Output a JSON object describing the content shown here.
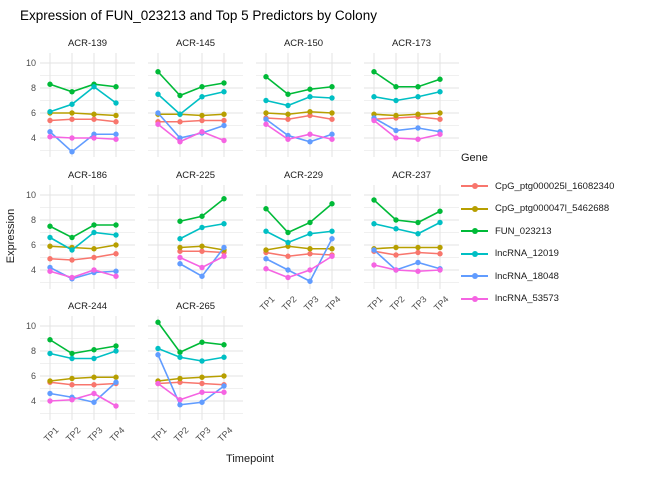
{
  "title": "Expression of FUN_023213 and Top 5 Predictors by Colony",
  "axes": {
    "x_title": "Timepoint",
    "y_title": "Expression",
    "x_ticks": [
      "TP1",
      "TP2",
      "TP3",
      "TP4"
    ],
    "y_ticks": [
      "10",
      "8",
      "6",
      "4"
    ]
  },
  "legend": {
    "title": "Gene",
    "items": [
      {
        "label": "CpG_ptg000025l_16082340",
        "color": "#F8766D"
      },
      {
        "label": "CpG_ptg000047l_5462688",
        "color": "#B79F00"
      },
      {
        "label": "FUN_023213",
        "color": "#00BA38"
      },
      {
        "label": "lncRNA_12019",
        "color": "#00BFC4"
      },
      {
        "label": "lncRNA_18048",
        "color": "#619CFF"
      },
      {
        "label": "lncRNA_53573",
        "color": "#F564E2"
      }
    ]
  },
  "chart_data": {
    "type": "line",
    "title": "Expression of FUN_023213 and Top 5 Predictors by Colony",
    "xlabel": "Timepoint",
    "ylabel": "Expression",
    "x": [
      "TP1",
      "TP2",
      "TP3",
      "TP4"
    ],
    "ylim": [
      2.5,
      10.8
    ],
    "y_major_ticks": [
      4,
      6,
      8,
      10
    ],
    "y_minor_ticks": [
      3,
      5,
      7,
      9
    ],
    "grid": true,
    "legend_position": "right",
    "series_names": [
      "CpG_ptg000025l_16082340",
      "CpG_ptg000047l_5462688",
      "FUN_023213",
      "lncRNA_12019",
      "lncRNA_18048",
      "lncRNA_53573"
    ],
    "facets": [
      {
        "name": "ACR-139",
        "series": [
          [
            5.4,
            5.5,
            5.5,
            5.3
          ],
          [
            6.0,
            6.0,
            5.9,
            5.8
          ],
          [
            8.3,
            7.7,
            8.3,
            8.1
          ],
          [
            6.1,
            6.7,
            8.1,
            6.8
          ],
          [
            4.5,
            2.9,
            4.3,
            4.3
          ],
          [
            4.1,
            4.0,
            4.0,
            3.9
          ]
        ]
      },
      {
        "name": "ACR-145",
        "series": [
          [
            5.3,
            5.3,
            5.4,
            5.4
          ],
          [
            5.9,
            5.9,
            5.8,
            5.9
          ],
          [
            9.3,
            7.4,
            8.1,
            8.4
          ],
          [
            7.5,
            5.9,
            7.3,
            7.7
          ],
          [
            6.0,
            4.0,
            4.4,
            5.0
          ],
          [
            5.1,
            3.7,
            4.5,
            3.8
          ]
        ]
      },
      {
        "name": "ACR-150",
        "series": [
          [
            5.6,
            5.5,
            5.8,
            5.5
          ],
          [
            6.0,
            5.9,
            6.1,
            6.0
          ],
          [
            8.9,
            7.5,
            7.9,
            8.1
          ],
          [
            7.0,
            6.6,
            7.3,
            7.2
          ],
          [
            5.5,
            4.2,
            3.7,
            4.3
          ],
          [
            5.1,
            3.9,
            4.3,
            3.9
          ]
        ]
      },
      {
        "name": "ACR-173",
        "series": [
          [
            5.5,
            5.6,
            5.7,
            5.5
          ],
          [
            5.9,
            5.8,
            5.9,
            6.0
          ],
          [
            9.3,
            8.1,
            8.1,
            8.7
          ],
          [
            7.3,
            7.0,
            7.3,
            7.7
          ],
          [
            5.6,
            4.6,
            4.8,
            4.5
          ],
          [
            5.4,
            4.0,
            3.9,
            4.3
          ]
        ]
      },
      {
        "name": "ACR-186",
        "series": [
          [
            4.9,
            4.8,
            5.0,
            5.3
          ],
          [
            5.9,
            5.8,
            5.7,
            6.0
          ],
          [
            7.5,
            6.6,
            7.6,
            7.6
          ],
          [
            6.6,
            5.6,
            7.0,
            6.8
          ],
          [
            4.2,
            3.3,
            3.8,
            3.9
          ],
          [
            3.9,
            3.4,
            4.0,
            3.5
          ]
        ]
      },
      {
        "name": "ACR-225",
        "series": [
          [
            null,
            5.5,
            5.5,
            5.4
          ],
          [
            null,
            5.8,
            5.9,
            5.6
          ],
          [
            null,
            7.9,
            8.3,
            9.7
          ],
          [
            null,
            6.5,
            7.4,
            7.7
          ],
          [
            null,
            4.5,
            3.5,
            5.8
          ],
          [
            null,
            5.0,
            4.2,
            5.1
          ]
        ]
      },
      {
        "name": "ACR-229",
        "series": [
          [
            5.4,
            5.1,
            5.3,
            5.2
          ],
          [
            5.6,
            5.9,
            5.7,
            5.7
          ],
          [
            8.9,
            7.0,
            7.8,
            9.3
          ],
          [
            7.1,
            6.2,
            6.9,
            7.1
          ],
          [
            4.9,
            4.0,
            3.1,
            6.5
          ],
          [
            4.1,
            3.4,
            4.0,
            5.1
          ]
        ]
      },
      {
        "name": "ACR-237",
        "series": [
          [
            5.5,
            5.2,
            5.4,
            5.3
          ],
          [
            5.7,
            5.8,
            5.8,
            5.8
          ],
          [
            9.6,
            8.0,
            7.8,
            8.7
          ],
          [
            7.7,
            7.3,
            6.9,
            7.8
          ],
          [
            5.6,
            4.0,
            4.6,
            4.1
          ],
          [
            4.4,
            4.0,
            3.9,
            4.0
          ]
        ]
      },
      {
        "name": "ACR-244",
        "series": [
          [
            5.5,
            5.3,
            5.3,
            5.4
          ],
          [
            5.6,
            5.8,
            5.9,
            5.9
          ],
          [
            8.9,
            7.8,
            8.1,
            8.4
          ],
          [
            7.8,
            7.4,
            7.4,
            8.0
          ],
          [
            4.6,
            4.3,
            3.9,
            5.5
          ],
          [
            4.0,
            4.1,
            4.6,
            3.6
          ]
        ]
      },
      {
        "name": "ACR-265",
        "series": [
          [
            5.4,
            5.5,
            5.4,
            5.3
          ],
          [
            5.6,
            5.8,
            5.9,
            6.0
          ],
          [
            10.3,
            7.9,
            8.7,
            8.5
          ],
          [
            8.2,
            7.5,
            7.2,
            7.5
          ],
          [
            7.7,
            3.7,
            3.9,
            5.2
          ],
          [
            5.4,
            4.1,
            4.7,
            4.7
          ]
        ]
      }
    ]
  }
}
